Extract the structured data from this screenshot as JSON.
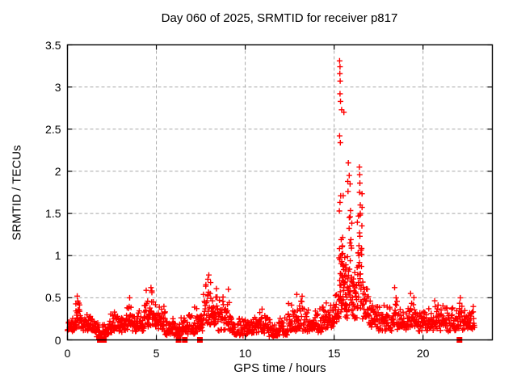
{
  "window": {
    "title": "Day 060 of 2025, SRMTID for receiver p817"
  },
  "chart_data": {
    "type": "scatter",
    "title": "Day 060 of 2025, SRMTID for receiver p817",
    "xlabel": "GPS time / hours",
    "ylabel": "SRMTID / TECUs",
    "xlim": [
      0,
      23.9
    ],
    "ylim": [
      0,
      3.5
    ],
    "xticks": [
      0,
      5,
      10,
      15,
      20
    ],
    "yticks": [
      0,
      0.5,
      1,
      1.5,
      2,
      2.5,
      3,
      3.5
    ],
    "grid": "dashed gray at major ticks, both axes",
    "legend": "none",
    "background_color": "#ffffff",
    "border_color": "#000000",
    "marker_color": "#ff0000",
    "grid_color": "#a8a8a8",
    "series": [
      {
        "name": "srmtid",
        "marker": "plus",
        "color": "#ff0000",
        "bands_format": [
          "x_start_hour",
          "x_end_hour",
          "point_count",
          "y_min_TECU",
          "y_max_TECU"
        ],
        "bands": [
          [
            0.0,
            0.45,
            28,
            0.1,
            0.28
          ],
          [
            0.45,
            0.75,
            22,
            0.15,
            0.58
          ],
          [
            0.75,
            1.55,
            50,
            0.1,
            0.34
          ],
          [
            1.55,
            2.3,
            40,
            0.03,
            0.22
          ],
          [
            2.3,
            3.3,
            60,
            0.07,
            0.4
          ],
          [
            3.3,
            3.65,
            24,
            0.12,
            0.5
          ],
          [
            3.65,
            4.3,
            40,
            0.1,
            0.36
          ],
          [
            4.3,
            5.05,
            52,
            0.15,
            0.62
          ],
          [
            5.05,
            5.5,
            30,
            0.1,
            0.47
          ],
          [
            5.5,
            6.3,
            45,
            0.04,
            0.3
          ],
          [
            6.3,
            7.35,
            60,
            0.05,
            0.4
          ],
          [
            7.35,
            7.65,
            20,
            0.08,
            0.45
          ],
          [
            7.65,
            8.45,
            55,
            0.18,
            0.77
          ],
          [
            8.45,
            9.25,
            48,
            0.1,
            0.55
          ],
          [
            9.25,
            10.5,
            70,
            0.05,
            0.3
          ],
          [
            10.5,
            11.35,
            50,
            0.08,
            0.38
          ],
          [
            11.35,
            12.4,
            60,
            0.04,
            0.28
          ],
          [
            12.4,
            13.25,
            50,
            0.1,
            0.54
          ],
          [
            13.25,
            14.3,
            60,
            0.08,
            0.4
          ],
          [
            14.3,
            15.05,
            48,
            0.13,
            0.57
          ],
          [
            15.05,
            15.28,
            16,
            0.2,
            0.66
          ],
          [
            15.28,
            15.52,
            40,
            0.3,
            2.05
          ],
          [
            15.52,
            15.75,
            30,
            0.25,
            1.45
          ],
          [
            15.75,
            16.0,
            30,
            0.3,
            2.1
          ],
          [
            16.0,
            16.3,
            25,
            0.25,
            1.05
          ],
          [
            16.3,
            16.58,
            35,
            0.35,
            2.05
          ],
          [
            16.58,
            16.95,
            28,
            0.25,
            0.8
          ],
          [
            16.95,
            17.45,
            30,
            0.15,
            0.55
          ],
          [
            17.45,
            18.25,
            45,
            0.1,
            0.45
          ],
          [
            18.25,
            18.55,
            18,
            0.15,
            0.62
          ],
          [
            18.55,
            19.05,
            30,
            0.1,
            0.4
          ],
          [
            19.05,
            19.65,
            38,
            0.15,
            0.56
          ],
          [
            19.65,
            20.4,
            45,
            0.1,
            0.4
          ],
          [
            20.4,
            21.4,
            60,
            0.1,
            0.5
          ],
          [
            21.4,
            22.35,
            55,
            0.1,
            0.5
          ],
          [
            22.35,
            22.9,
            35,
            0.12,
            0.42
          ]
        ],
        "points": [
          [
            0.55,
            0.52
          ],
          [
            0.58,
            0.46
          ],
          [
            3.5,
            0.5
          ],
          [
            4.7,
            0.62
          ],
          [
            4.75,
            0.58
          ],
          [
            7.9,
            0.72
          ],
          [
            7.95,
            0.77
          ],
          [
            8.05,
            0.68
          ],
          [
            9.05,
            0.6
          ],
          [
            12.9,
            0.54
          ],
          [
            15.31,
            3.31
          ],
          [
            15.33,
            3.24
          ],
          [
            15.32,
            3.16
          ],
          [
            15.34,
            3.07
          ],
          [
            15.33,
            2.92
          ],
          [
            15.36,
            2.83
          ],
          [
            15.42,
            2.73
          ],
          [
            15.55,
            2.7
          ],
          [
            15.31,
            2.42
          ],
          [
            15.35,
            2.34
          ],
          [
            15.8,
            2.1
          ],
          [
            15.85,
            1.95
          ],
          [
            15.9,
            1.85
          ],
          [
            16.42,
            2.05
          ],
          [
            16.44,
            1.96
          ],
          [
            16.45,
            1.86
          ],
          [
            16.43,
            1.75
          ],
          [
            16.47,
            1.6
          ],
          [
            18.4,
            0.62
          ],
          [
            19.3,
            0.55
          ],
          [
            22.1,
            0.5
          ]
        ]
      },
      {
        "name": "flagged-zero",
        "marker": "filled-square",
        "color": "#ff0000",
        "points": [
          [
            1.82,
            0
          ],
          [
            2.05,
            0
          ],
          [
            6.25,
            0
          ],
          [
            6.6,
            0
          ],
          [
            7.45,
            0
          ],
          [
            22.05,
            0
          ]
        ]
      }
    ]
  }
}
